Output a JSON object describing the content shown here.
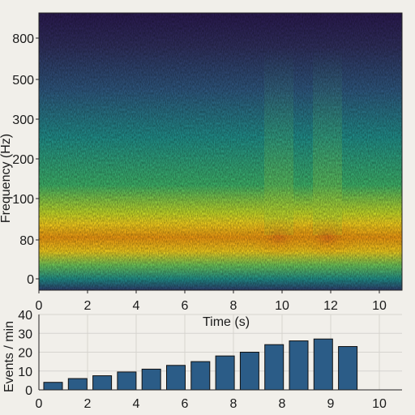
{
  "chart_data": [
    {
      "type": "heatmap",
      "title": "",
      "xlabel": "Time (s)",
      "ylabel": "Frequency (Hz)",
      "x_tick_labels": [
        "0",
        "2",
        "4",
        "6",
        "8",
        "10",
        "12",
        "10"
      ],
      "y_tick_labels": [
        "0",
        "80",
        "100",
        "200",
        "300",
        "500",
        "800"
      ],
      "colormap": [
        "#30123b",
        "#3b528b",
        "#21918c",
        "#5ec962",
        "#fde725",
        "#f39c12"
      ],
      "intensity_profile": {
        "dominant_band_hz_label": "80",
        "dominant_band_intensity": 1.0,
        "background_intensity_low_freq": 0.55,
        "background_intensity_high_freq": 0.05,
        "bursts": [
          {
            "time_label": "10",
            "intensity": 0.75
          },
          {
            "time_label": "12",
            "intensity": 0.85
          }
        ]
      }
    },
    {
      "type": "bar",
      "title": "",
      "xlabel": "",
      "ylabel": "Events / min",
      "x_tick_labels": [
        "0",
        "2",
        "4",
        "6",
        "8",
        "8",
        "9",
        "10"
      ],
      "ylim": [
        0,
        40
      ],
      "yticks": [
        0,
        10,
        20,
        30,
        40
      ],
      "grid": true,
      "bar_color": "#2b5c87",
      "values": [
        4,
        6,
        7.5,
        9.5,
        11,
        13,
        15,
        18,
        20,
        24,
        26,
        27,
        23
      ]
    }
  ]
}
